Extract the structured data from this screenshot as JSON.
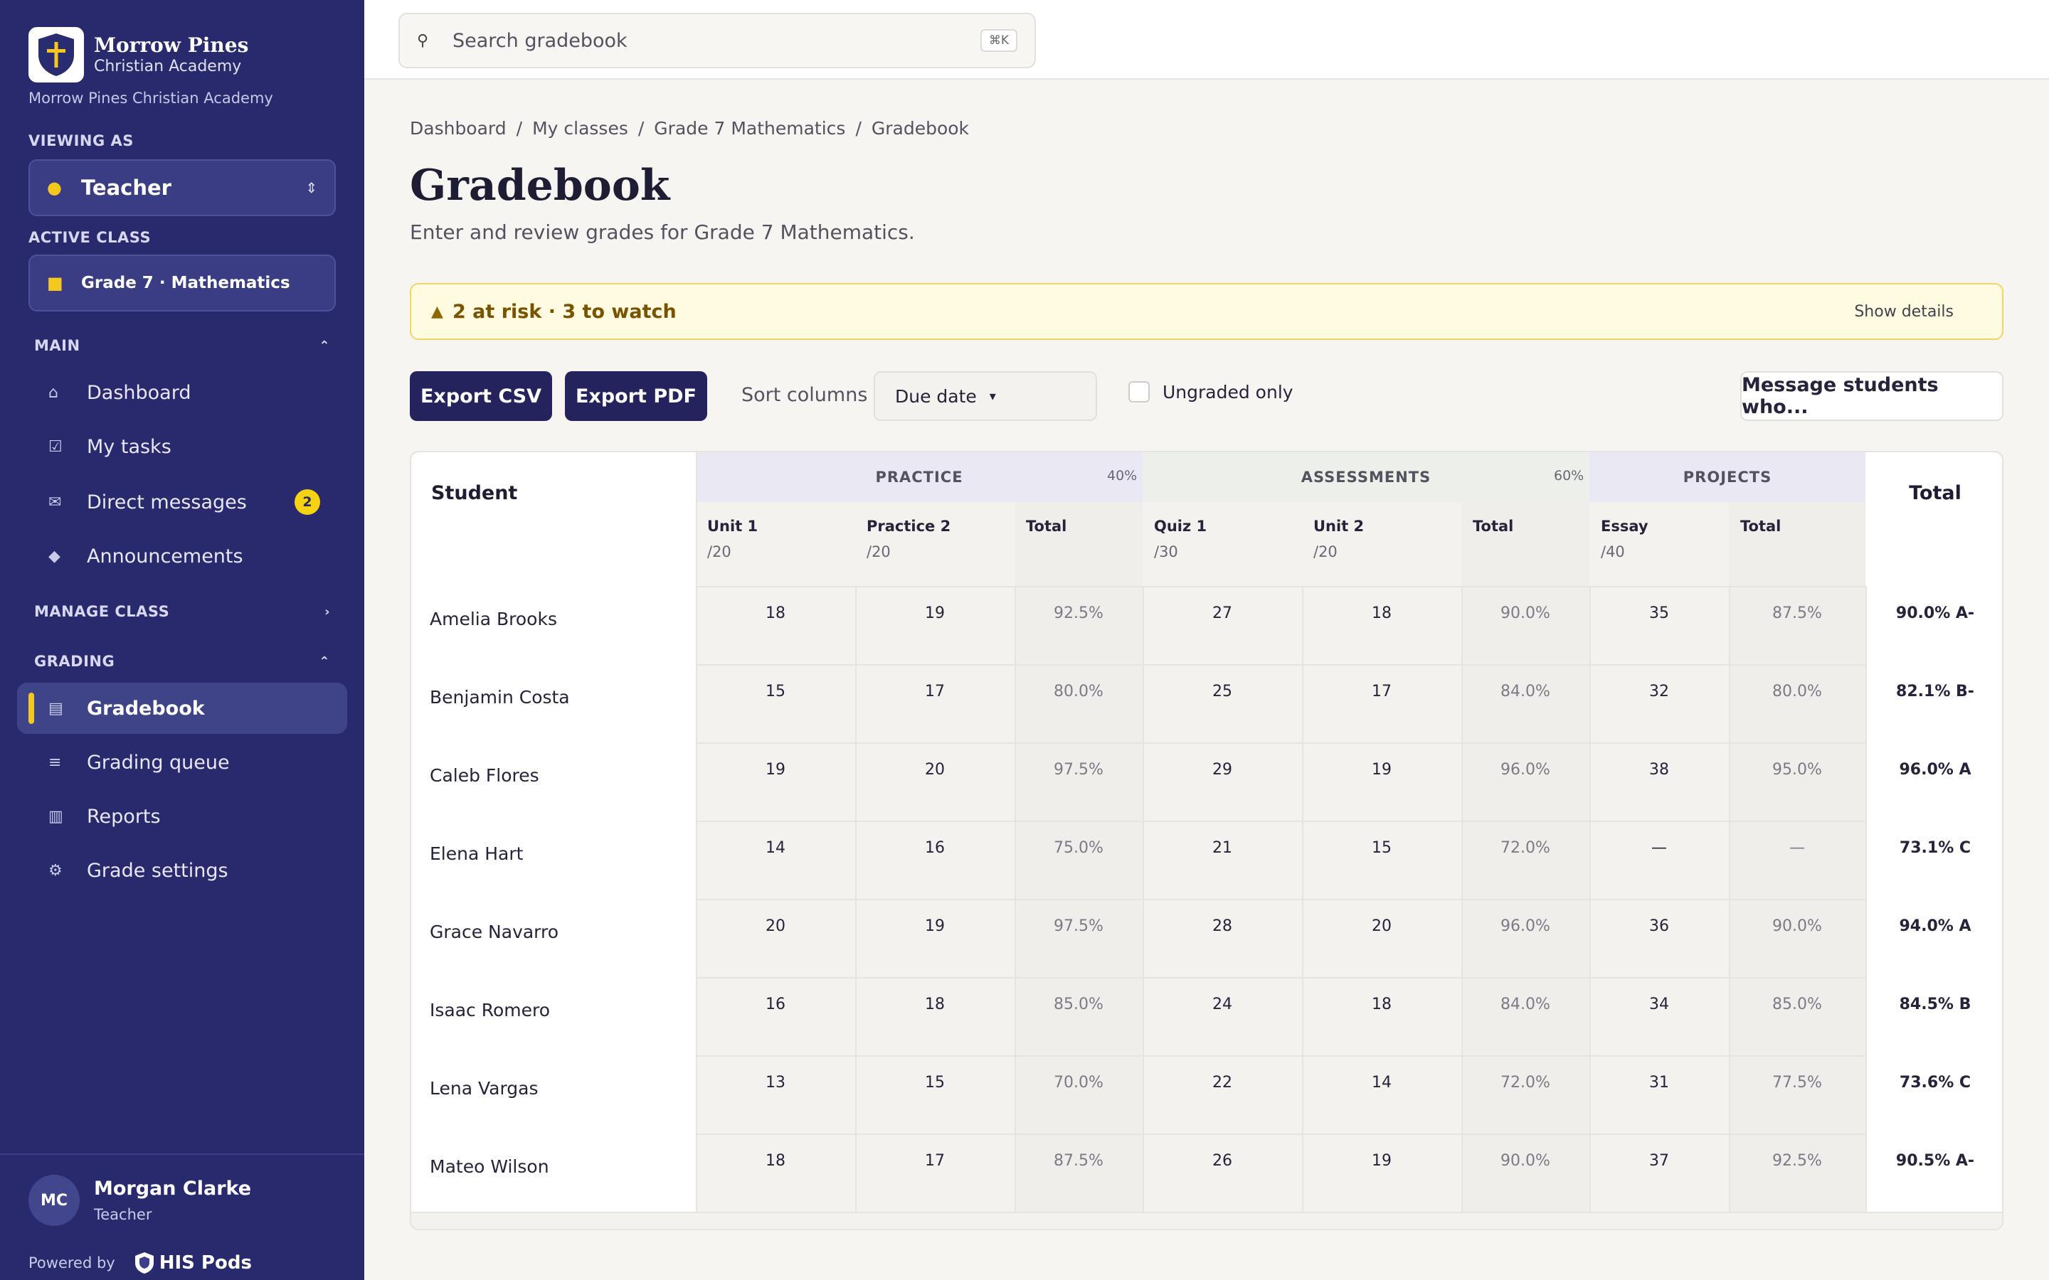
{
  "sidebar": {
    "brand_name": "Morrow Pines",
    "brand_sub": "Christian Academy",
    "brand_caption": "Morrow Pines Christian Academy",
    "viewing_as_label": "VIEWING AS",
    "viewing_as_value": "Teacher",
    "active_class_label": "ACTIVE CLASS",
    "active_class_value": "Grade 7 · Mathematics",
    "main_label": "MAIN",
    "main_items": [
      {
        "label": "Dashboard",
        "icon": "home-icon"
      },
      {
        "label": "My tasks",
        "icon": "tasks-icon"
      },
      {
        "label": "Direct messages",
        "icon": "messages-icon",
        "badge": "2"
      },
      {
        "label": "Announcements",
        "icon": "megaphone-icon"
      }
    ],
    "manage_label": "MANAGE CLASS",
    "grading_label": "GRADING",
    "grading_items": [
      {
        "label": "Gradebook",
        "icon": "book-icon",
        "active": true
      },
      {
        "label": "Grading queue",
        "icon": "queue-icon"
      },
      {
        "label": "Reports",
        "icon": "chart-icon"
      },
      {
        "label": "Grade settings",
        "icon": "settings-icon"
      }
    ],
    "user_initials": "MC",
    "user_name": "Morgan Clarke",
    "user_role": "Teacher",
    "powered_by": "Powered by",
    "powered_brand": "HIS Pods"
  },
  "topbar": {
    "search_placeholder": "Search gradebook",
    "shortcut": "⌘K"
  },
  "breadcrumb": [
    "Dashboard",
    "My classes",
    "Grade 7 Mathematics",
    "Gradebook"
  ],
  "page": {
    "title": "Gradebook",
    "subtitle": "Enter and review grades for Grade 7 Mathematics."
  },
  "risk": {
    "text": "2 at risk · 3 to watch",
    "link": "Show details"
  },
  "toolbar": {
    "export_csv": "Export CSV",
    "export_pdf": "Export PDF",
    "sort_label": "Sort columns",
    "sort_value": "Due date",
    "ungraded_label": "Ungraded only",
    "message_btn": "Message students who..."
  },
  "table": {
    "student_header": "Student",
    "total_header": "Total",
    "groups": [
      {
        "name": "PRACTICE",
        "weight": "40%"
      },
      {
        "name": "ASSESSMENTS",
        "weight": "60%"
      },
      {
        "name": "PROJECTS",
        "weight": ""
      }
    ],
    "columns": [
      {
        "name": "Unit 1",
        "max": "/20"
      },
      {
        "name": "Practice 2",
        "max": "/20"
      },
      {
        "name": "Total",
        "max": ""
      },
      {
        "name": "Quiz 1",
        "max": "/30"
      },
      {
        "name": "Unit 2",
        "max": "/20"
      },
      {
        "name": "Total",
        "max": ""
      },
      {
        "name": "Essay",
        "max": "/40"
      },
      {
        "name": "Total",
        "max": ""
      }
    ],
    "rows": [
      {
        "name": "Amelia Brooks",
        "cells": [
          "18",
          "19",
          "92.5%",
          "27",
          "18",
          "90.0%",
          "35",
          "87.5%"
        ],
        "total": "90.0%",
        "grade": "A-"
      },
      {
        "name": "Benjamin Costa",
        "cells": [
          "15",
          "17",
          "80.0%",
          "25",
          "17",
          "84.0%",
          "32",
          "80.0%"
        ],
        "total": "82.1%",
        "grade": "B-"
      },
      {
        "name": "Caleb Flores",
        "cells": [
          "19",
          "20",
          "97.5%",
          "29",
          "19",
          "96.0%",
          "38",
          "95.0%"
        ],
        "total": "96.0%",
        "grade": "A"
      },
      {
        "name": "Elena Hart",
        "cells": [
          "14",
          "16",
          "75.0%",
          "21",
          "15",
          "72.0%",
          "—",
          "—"
        ],
        "total": "73.1%",
        "grade": "C"
      },
      {
        "name": "Grace Navarro",
        "cells": [
          "20",
          "19",
          "97.5%",
          "28",
          "20",
          "96.0%",
          "36",
          "90.0%"
        ],
        "total": "94.0%",
        "grade": "A"
      },
      {
        "name": "Isaac Romero",
        "cells": [
          "16",
          "18",
          "85.0%",
          "24",
          "18",
          "84.0%",
          "34",
          "85.0%"
        ],
        "total": "84.5%",
        "grade": "B"
      },
      {
        "name": "Lena Vargas",
        "cells": [
          "13",
          "15",
          "70.0%",
          "22",
          "14",
          "72.0%",
          "31",
          "77.5%"
        ],
        "total": "73.6%",
        "grade": "C"
      },
      {
        "name": "Mateo Wilson",
        "cells": [
          "18",
          "17",
          "87.5%",
          "26",
          "19",
          "90.0%",
          "37",
          "92.5%"
        ],
        "total": "90.5%",
        "grade": "A-"
      }
    ]
  },
  "colors": {
    "sidebar_bg": "#29296e",
    "accent_yellow": "#f5c81e",
    "button_dark": "#24235e",
    "practice_header": "#e9e8f3",
    "assessments_header": "#eef1ea",
    "projects_header": "#e9e8f3"
  }
}
